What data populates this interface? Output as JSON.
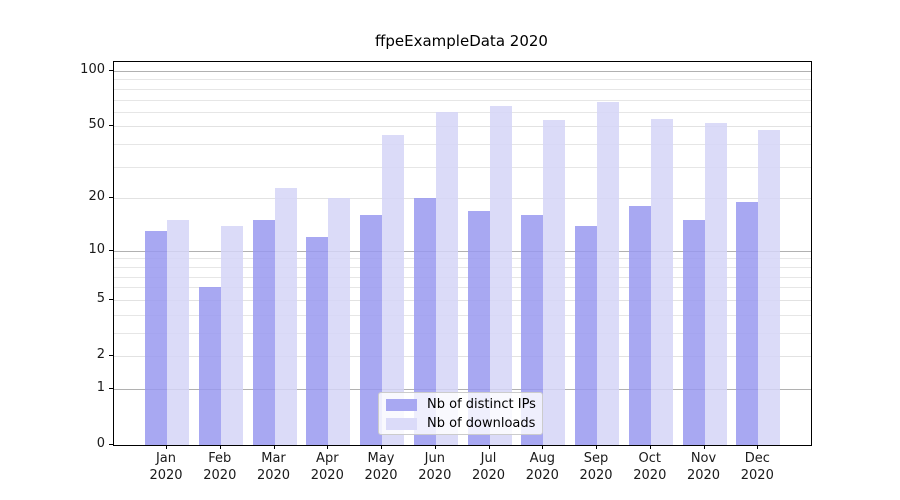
{
  "title": "ffpeExampleData 2020",
  "chart_data": {
    "type": "bar",
    "title": "ffpeExampleData 2020",
    "categories": [
      "Jan 2020",
      "Feb 2020",
      "Mar 2020",
      "Apr 2020",
      "May 2020",
      "Jun 2020",
      "Jul 2020",
      "Aug 2020",
      "Sep 2020",
      "Oct 2020",
      "Nov 2020",
      "Dec 2020"
    ],
    "series": [
      {
        "name": "Nb of distinct IPs",
        "color": "#9999f0",
        "alpha": 0.85,
        "legend_color": "#a8a8f2",
        "values": [
          13,
          6,
          15,
          12,
          16,
          20,
          17,
          16,
          14,
          18,
          15,
          19
        ]
      },
      {
        "name": "Nb of downloads",
        "color": "#d5d5f7",
        "alpha": 0.85,
        "legend_color": "#dbdbf9",
        "values": [
          15,
          14,
          23,
          20,
          45,
          60,
          65,
          54,
          68,
          55,
          52,
          48
        ]
      }
    ],
    "xlabel": "",
    "ylabel": "",
    "yscale": "log1p",
    "ylim": [
      0,
      112
    ],
    "y_tick_values": [
      0,
      1,
      2,
      5,
      10,
      20,
      50,
      100
    ],
    "y_tick_labels": [
      "0",
      "1",
      "2",
      "5",
      "10",
      "20",
      "50",
      "100"
    ],
    "y_major_gridlines": [
      1,
      10,
      100
    ],
    "y_mid_gridlines": [
      2,
      5,
      20,
      50
    ],
    "y_minor_gridlines": [
      3,
      4,
      6,
      7,
      8,
      9,
      30,
      40,
      60,
      70,
      80,
      90
    ],
    "grid": true,
    "legend_position": "lower center",
    "grid_color_major": "#b1b1b1",
    "grid_color_minor": "#e6e6e6"
  }
}
